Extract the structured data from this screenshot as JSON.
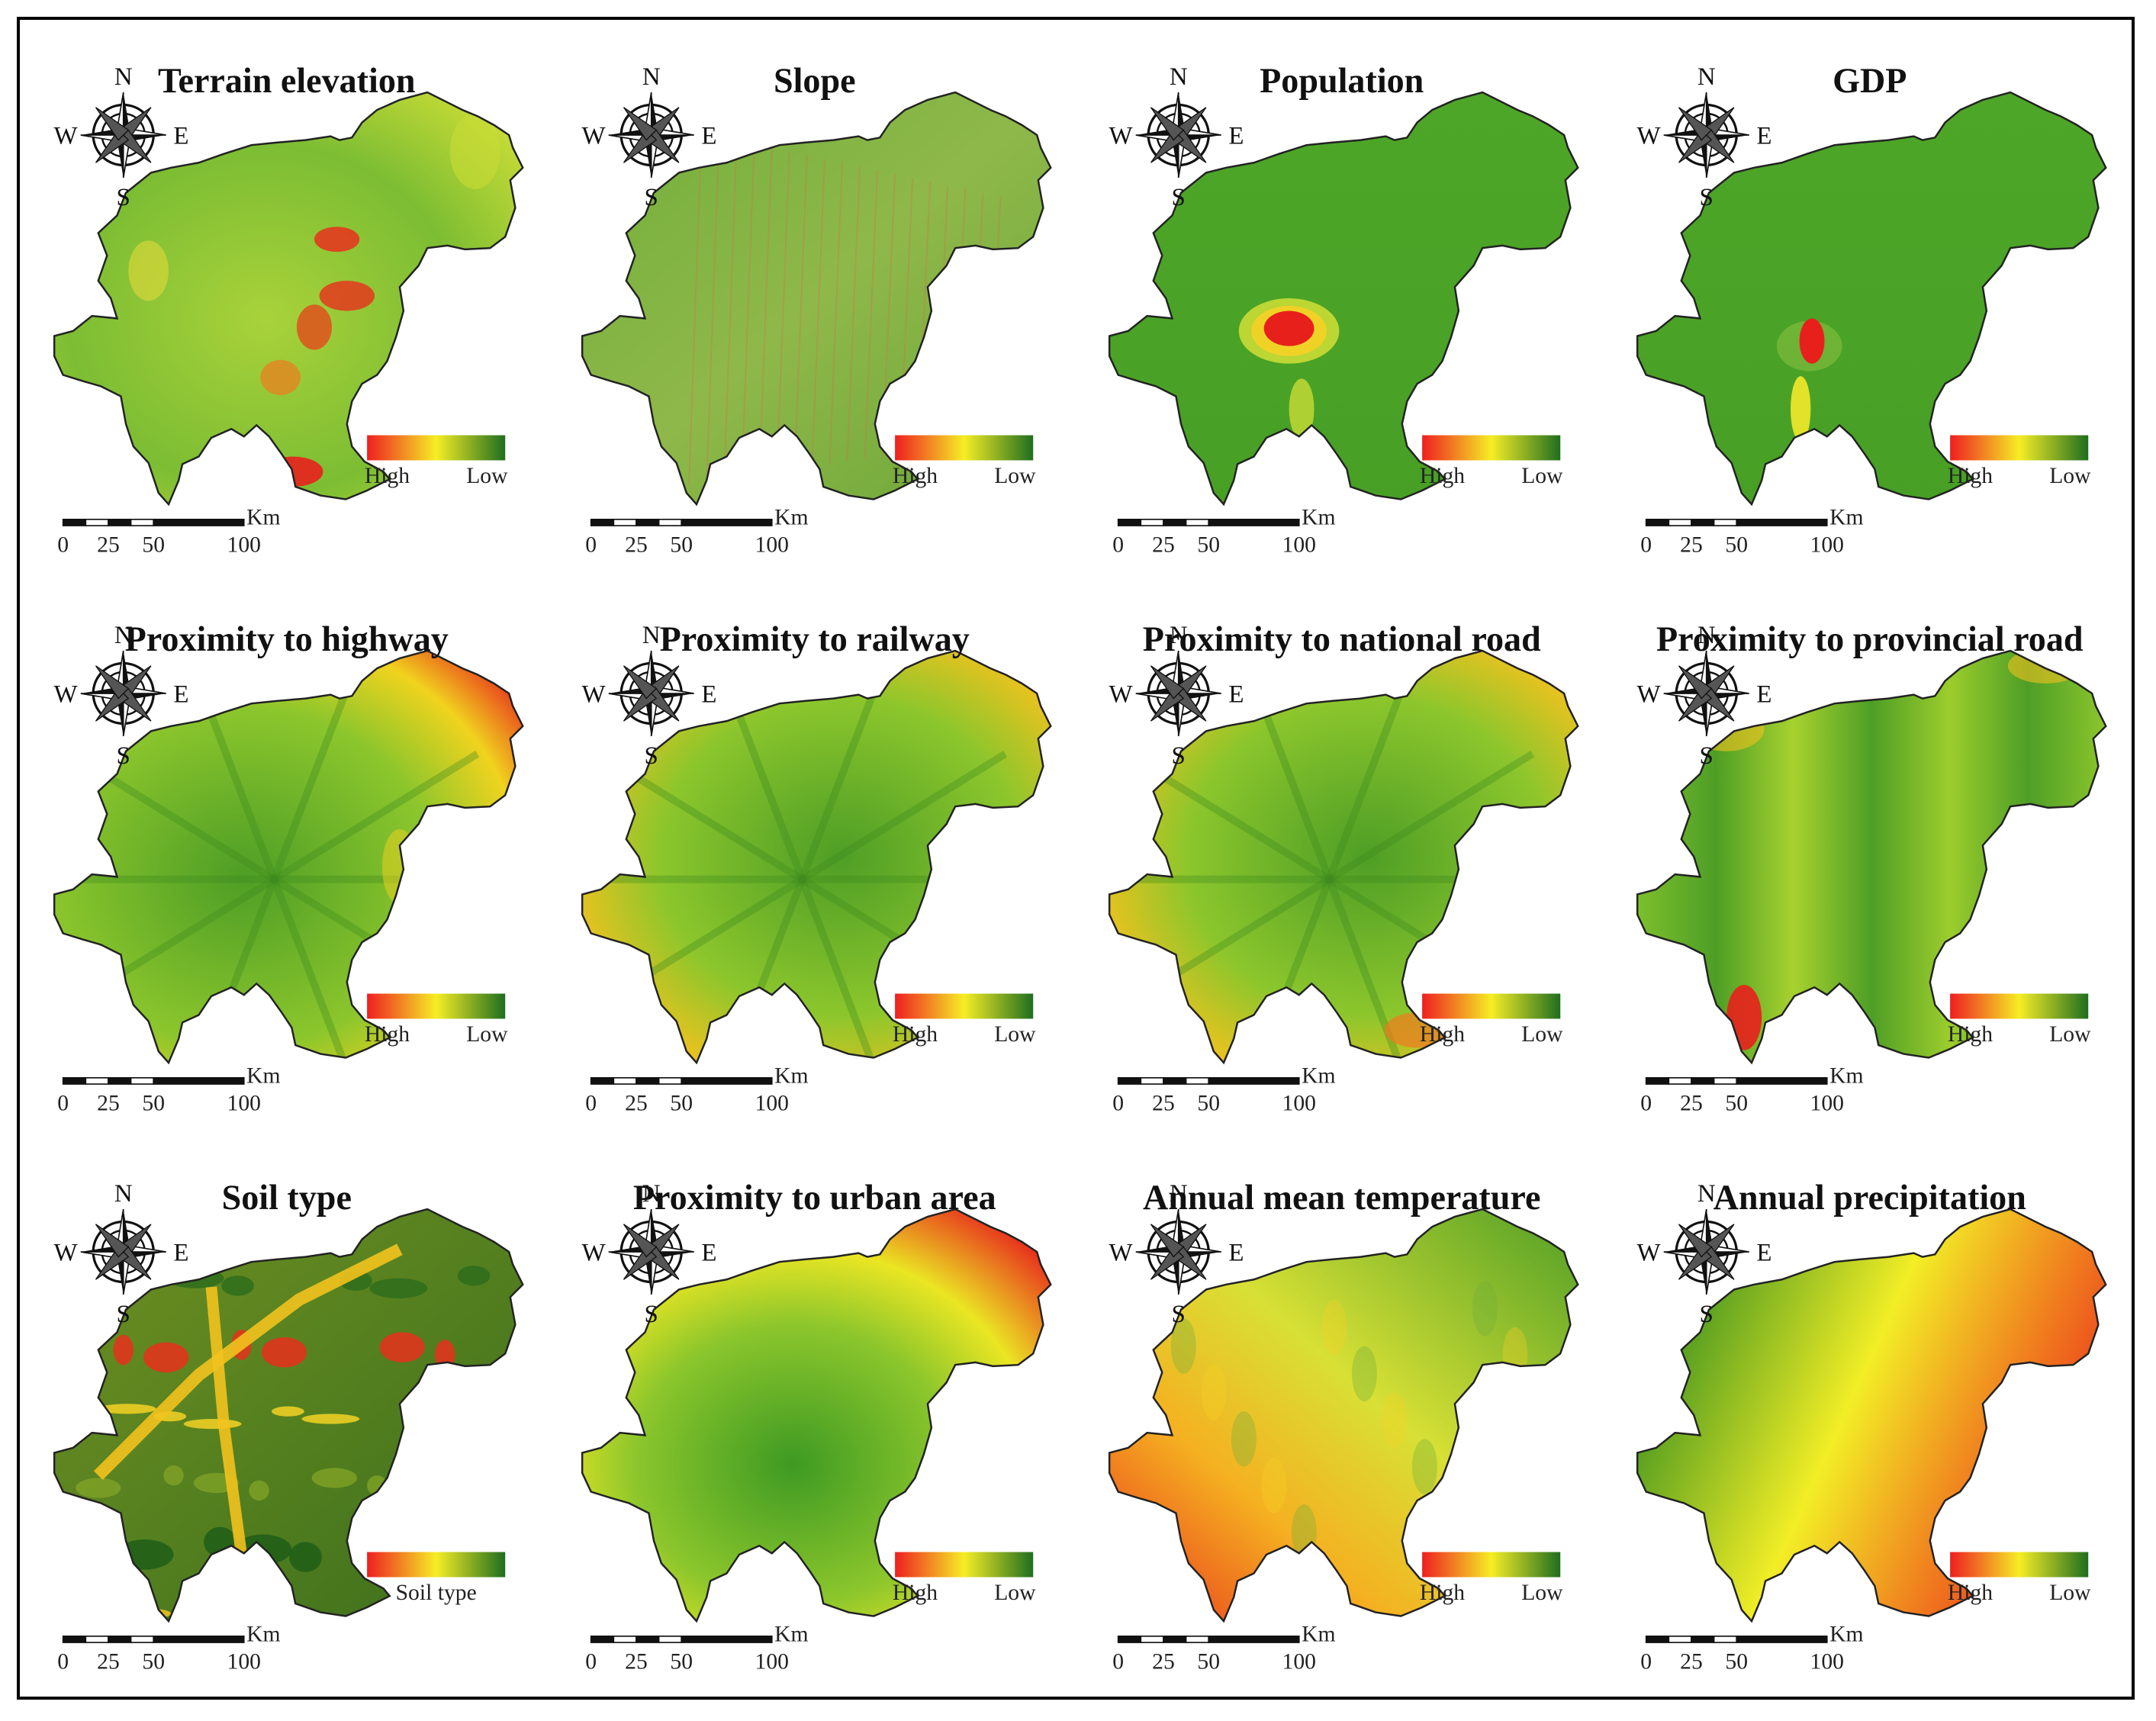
{
  "figure": {
    "colors": {
      "high": "#ee1f1f",
      "mid": "#f5ee25",
      "low": "#1f6e1f",
      "base_green": "#4fa328",
      "outline": "#222222"
    },
    "panels": [
      {
        "title": "Terrain elevation",
        "legend_left": "High",
        "legend_right": "Low",
        "legend_center": "",
        "fill": "terrain"
      },
      {
        "title": "Slope",
        "legend_left": "High",
        "legend_right": "Low",
        "legend_center": "",
        "fill": "slope"
      },
      {
        "title": "Population",
        "legend_left": "High",
        "legend_right": "Low",
        "legend_center": "",
        "fill": "population"
      },
      {
        "title": "GDP",
        "legend_left": "High",
        "legend_right": "Low",
        "legend_center": "",
        "fill": "gdp"
      },
      {
        "title": "Proximity to highway",
        "legend_left": "High",
        "legend_right": "Low",
        "legend_center": "",
        "fill": "highway"
      },
      {
        "title": "Proximity to railway",
        "legend_left": "High",
        "legend_right": "Low",
        "legend_center": "",
        "fill": "railway"
      },
      {
        "title": "Proximity to national road",
        "legend_left": "High",
        "legend_right": "Low",
        "legend_center": "",
        "fill": "national"
      },
      {
        "title": "Proximity to provincial road",
        "legend_left": "High",
        "legend_right": "Low",
        "legend_center": "",
        "fill": "provincial"
      },
      {
        "title": "Soil type",
        "legend_left": "",
        "legend_right": "",
        "legend_center": "Soil type",
        "fill": "soil"
      },
      {
        "title": "Proximity to urban area",
        "legend_left": "High",
        "legend_right": "Low",
        "legend_center": "",
        "fill": "urban"
      },
      {
        "title": "Annual mean temperature",
        "legend_left": "High",
        "legend_right": "Low",
        "legend_center": "",
        "fill": "temperature"
      },
      {
        "title": "Annual precipitation",
        "legend_left": "High",
        "legend_right": "Low",
        "legend_center": "",
        "fill": "precipitation"
      }
    ],
    "compass": {
      "n": "N",
      "s": "S",
      "e": "E",
      "w": "W"
    },
    "scale_bar": {
      "unit": "Km",
      "ticks": [
        "0",
        "25",
        "50",
        "100"
      ]
    }
  }
}
